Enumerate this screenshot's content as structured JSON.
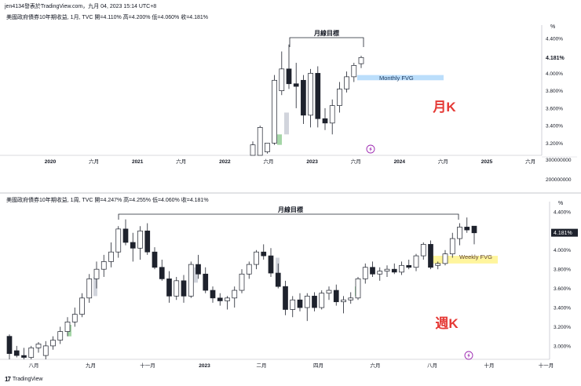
{
  "header": {
    "text": "jen4134發表於TradingView.com，九月 04, 2023 15:14 UTC+8"
  },
  "footer": {
    "logo_icon": "tradingview-logo-icon",
    "brand": "TradingView"
  },
  "colors": {
    "up_body": "#ffffff",
    "down_body": "#1e222d",
    "wick": "#1e222d",
    "fvg_blue": "#bbdefb",
    "fvg_yellow": "#fff59d",
    "label_red": "#e53935",
    "gap_green": "#a5d6a7",
    "gap_gray": "#d1d4dc",
    "flash_icon": "#9c27b0"
  },
  "chart_data": [
    {
      "type": "candlestick",
      "info": "美國政府債券10年期收益, 1月, TVC  開=4.110%  高=4.200%  低=4.060%  收=4.181%",
      "x_labels": [
        "2020",
        "六月",
        "2021",
        "六月",
        "2022",
        "六月",
        "2023",
        "六月",
        "2024",
        "六月",
        "2025",
        "六月"
      ],
      "y_unit": "%",
      "y_ticks": [
        "4.400%",
        "4.000%",
        "3.800%",
        "3.600%",
        "3.400%",
        "3.200%"
      ],
      "y_extra_ticks": [
        "300000000",
        "200000000"
      ],
      "ylim": [
        3.06,
        4.48
      ],
      "last_value": "4.181%",
      "candles": [
        {
          "o": 3.0,
          "h": 3.22,
          "l": 3.0,
          "c": 3.18
        },
        {
          "o": 3.0,
          "h": 3.4,
          "l": 3.0,
          "c": 3.38
        },
        {
          "o": 3.1,
          "h": 3.2,
          "l": 3.08,
          "c": 3.2
        },
        {
          "o": 3.2,
          "h": 3.98,
          "l": 3.18,
          "c": 3.92
        },
        {
          "o": 3.8,
          "h": 4.25,
          "l": 3.75,
          "c": 4.05
        },
        {
          "o": 4.05,
          "h": 4.33,
          "l": 3.82,
          "c": 3.88
        },
        {
          "o": 3.88,
          "h": 4.12,
          "l": 3.6,
          "c": 3.85
        },
        {
          "o": 3.92,
          "h": 3.98,
          "l": 3.42,
          "c": 3.52
        },
        {
          "o": 3.52,
          "h": 4.05,
          "l": 3.38,
          "c": 4.0
        },
        {
          "o": 4.0,
          "h": 4.08,
          "l": 3.38,
          "c": 3.48
        },
        {
          "o": 3.48,
          "h": 3.6,
          "l": 3.35,
          "c": 3.43
        },
        {
          "o": 3.43,
          "h": 3.7,
          "l": 3.3,
          "c": 3.63
        },
        {
          "o": 3.63,
          "h": 3.9,
          "l": 3.55,
          "c": 3.82
        },
        {
          "o": 3.82,
          "h": 4.02,
          "l": 3.78,
          "c": 3.96
        },
        {
          "o": 3.96,
          "h": 4.12,
          "l": 3.9,
          "c": 4.09
        },
        {
          "o": 4.11,
          "h": 4.2,
          "l": 4.06,
          "c": 4.181
        }
      ],
      "annotations": {
        "target": "月線目標",
        "fvg": "Monthly FVG",
        "big_label": "月K"
      }
    },
    {
      "type": "candlestick",
      "info": "美國政府債券10年期收益, 1周, TVC  開=4.247%  高=4.255%  低=4.060%  收=4.181%",
      "x_labels": [
        "八月",
        "九月",
        "十一月",
        "2023",
        "二月",
        "四月",
        "六月",
        "八月",
        "十月",
        "十一月"
      ],
      "y_unit": "%",
      "y_ticks": [
        "4.400%",
        "4.200%",
        "4.000%",
        "3.800%",
        "3.600%",
        "3.400%",
        "3.200%",
        "3.000%"
      ],
      "ylim": [
        2.86,
        4.44
      ],
      "last_value": "4.181%",
      "candles": [
        {
          "o": 3.1,
          "h": 3.12,
          "l": 2.85,
          "c": 2.92
        },
        {
          "o": 2.95,
          "h": 3.0,
          "l": 2.88,
          "c": 2.9
        },
        {
          "o": 2.9,
          "h": 2.98,
          "l": 2.86,
          "c": 2.88
        },
        {
          "o": 2.88,
          "h": 3.0,
          "l": 2.85,
          "c": 2.98
        },
        {
          "o": 2.98,
          "h": 3.04,
          "l": 2.93,
          "c": 3.02
        },
        {
          "o": 2.9,
          "h": 3.05,
          "l": 2.85,
          "c": 3.0
        },
        {
          "o": 3.0,
          "h": 3.1,
          "l": 2.96,
          "c": 3.06
        },
        {
          "o": 3.06,
          "h": 3.2,
          "l": 3.02,
          "c": 3.15
        },
        {
          "o": 3.15,
          "h": 3.3,
          "l": 3.1,
          "c": 3.25
        },
        {
          "o": 3.25,
          "h": 3.4,
          "l": 3.2,
          "c": 3.33
        },
        {
          "o": 3.33,
          "h": 3.55,
          "l": 3.3,
          "c": 3.5
        },
        {
          "o": 3.5,
          "h": 3.75,
          "l": 3.45,
          "c": 3.7
        },
        {
          "o": 3.7,
          "h": 3.88,
          "l": 3.6,
          "c": 3.8
        },
        {
          "o": 3.8,
          "h": 3.95,
          "l": 3.72,
          "c": 3.88
        },
        {
          "o": 3.88,
          "h": 4.08,
          "l": 3.82,
          "c": 3.98
        },
        {
          "o": 3.98,
          "h": 4.25,
          "l": 3.92,
          "c": 4.22
        },
        {
          "o": 4.22,
          "h": 4.32,
          "l": 4.05,
          "c": 4.08
        },
        {
          "o": 4.08,
          "h": 4.18,
          "l": 3.88,
          "c": 4.02
        },
        {
          "o": 4.02,
          "h": 4.25,
          "l": 3.9,
          "c": 4.2
        },
        {
          "o": 4.2,
          "h": 4.28,
          "l": 3.95,
          "c": 3.98
        },
        {
          "o": 3.98,
          "h": 4.03,
          "l": 3.8,
          "c": 3.82
        },
        {
          "o": 3.82,
          "h": 3.9,
          "l": 3.68,
          "c": 3.7
        },
        {
          "o": 3.7,
          "h": 3.78,
          "l": 3.45,
          "c": 3.52
        },
        {
          "o": 3.52,
          "h": 3.72,
          "l": 3.48,
          "c": 3.68
        },
        {
          "o": 3.68,
          "h": 3.74,
          "l": 3.45,
          "c": 3.52
        },
        {
          "o": 3.52,
          "h": 3.88,
          "l": 3.5,
          "c": 3.85
        },
        {
          "o": 3.85,
          "h": 3.95,
          "l": 3.7,
          "c": 3.75
        },
        {
          "o": 3.75,
          "h": 3.82,
          "l": 3.55,
          "c": 3.58
        },
        {
          "o": 3.58,
          "h": 3.62,
          "l": 3.45,
          "c": 3.5
        },
        {
          "o": 3.5,
          "h": 3.55,
          "l": 3.42,
          "c": 3.47
        },
        {
          "o": 3.47,
          "h": 3.52,
          "l": 3.38,
          "c": 3.5
        },
        {
          "o": 3.5,
          "h": 3.62,
          "l": 3.4,
          "c": 3.58
        },
        {
          "o": 3.58,
          "h": 3.8,
          "l": 3.55,
          "c": 3.75
        },
        {
          "o": 3.75,
          "h": 3.88,
          "l": 3.7,
          "c": 3.85
        },
        {
          "o": 3.85,
          "h": 4.0,
          "l": 3.8,
          "c": 3.98
        },
        {
          "o": 3.98,
          "h": 4.06,
          "l": 3.9,
          "c": 3.94
        },
        {
          "o": 3.94,
          "h": 4.02,
          "l": 3.72,
          "c": 3.76
        },
        {
          "o": 3.76,
          "h": 3.86,
          "l": 3.6,
          "c": 3.62
        },
        {
          "o": 3.62,
          "h": 3.68,
          "l": 3.32,
          "c": 3.38
        },
        {
          "o": 3.38,
          "h": 3.52,
          "l": 3.3,
          "c": 3.48
        },
        {
          "o": 3.48,
          "h": 3.55,
          "l": 3.36,
          "c": 3.4
        },
        {
          "o": 3.4,
          "h": 3.55,
          "l": 3.26,
          "c": 3.52
        },
        {
          "o": 3.52,
          "h": 3.56,
          "l": 3.36,
          "c": 3.4
        },
        {
          "o": 3.4,
          "h": 3.58,
          "l": 3.38,
          "c": 3.55
        },
        {
          "o": 3.55,
          "h": 3.62,
          "l": 3.48,
          "c": 3.58
        },
        {
          "o": 3.58,
          "h": 3.64,
          "l": 3.42,
          "c": 3.46
        },
        {
          "o": 3.46,
          "h": 3.52,
          "l": 3.34,
          "c": 3.48
        },
        {
          "o": 3.48,
          "h": 3.56,
          "l": 3.44,
          "c": 3.5
        },
        {
          "o": 3.5,
          "h": 3.72,
          "l": 3.48,
          "c": 3.7
        },
        {
          "o": 3.7,
          "h": 3.86,
          "l": 3.65,
          "c": 3.82
        },
        {
          "o": 3.82,
          "h": 3.88,
          "l": 3.72,
          "c": 3.75
        },
        {
          "o": 3.75,
          "h": 3.82,
          "l": 3.68,
          "c": 3.78
        },
        {
          "o": 3.78,
          "h": 3.84,
          "l": 3.72,
          "c": 3.8
        },
        {
          "o": 3.8,
          "h": 3.86,
          "l": 3.75,
          "c": 3.77
        },
        {
          "o": 3.77,
          "h": 3.88,
          "l": 3.74,
          "c": 3.84
        },
        {
          "o": 3.84,
          "h": 3.9,
          "l": 3.8,
          "c": 3.82
        },
        {
          "o": 3.82,
          "h": 3.96,
          "l": 3.78,
          "c": 3.94
        },
        {
          "o": 3.94,
          "h": 4.08,
          "l": 3.9,
          "c": 4.06
        },
        {
          "o": 4.06,
          "h": 4.1,
          "l": 3.8,
          "c": 3.82
        },
        {
          "o": 3.84,
          "h": 3.88,
          "l": 3.8,
          "c": 3.86
        },
        {
          "o": 3.86,
          "h": 4.0,
          "l": 3.84,
          "c": 3.96
        },
        {
          "o": 3.96,
          "h": 4.18,
          "l": 3.92,
          "c": 4.12
        },
        {
          "o": 4.12,
          "h": 4.28,
          "l": 4.05,
          "c": 4.24
        },
        {
          "o": 4.24,
          "h": 4.34,
          "l": 4.18,
          "c": 4.21
        },
        {
          "o": 4.25,
          "h": 4.25,
          "l": 4.06,
          "c": 4.18
        }
      ],
      "annotations": {
        "target": "月線目標",
        "fvg": "Weekly FVG",
        "big_label": "週K"
      }
    }
  ]
}
